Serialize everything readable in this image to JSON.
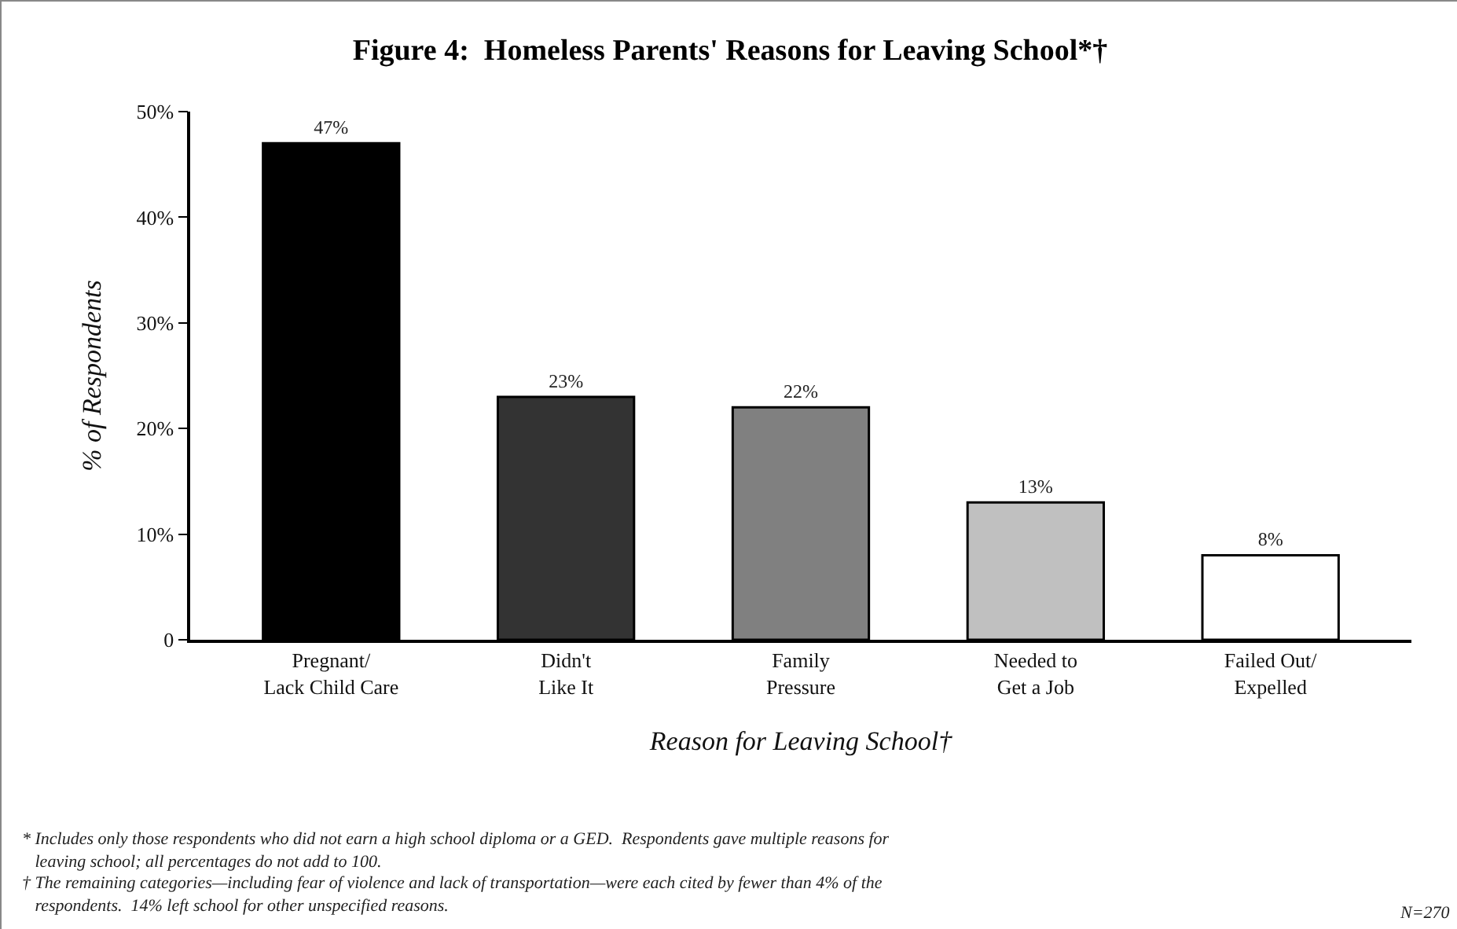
{
  "chart_data": {
    "type": "bar",
    "title": "Figure 4:  Homeless Parents' Reasons for Leaving School*†",
    "xlabel": "Reason for Leaving School†",
    "ylabel": "% of Respondents",
    "categories": [
      "Pregnant/\nLack Child Care",
      "Didn't\nLike It",
      "Family\nPressure",
      "Needed to\nGet a Job",
      "Failed Out/\nExpelled"
    ],
    "values": [
      47,
      23,
      22,
      13,
      8
    ],
    "colors": [
      "#000000",
      "#333333",
      "#808080",
      "#c0c0c0",
      "#ffffff"
    ],
    "value_labels": [
      "47%",
      "23%",
      "22%",
      "13%",
      "8%"
    ],
    "ylim": [
      0,
      50
    ],
    "yticks": [
      0,
      {
        "value": 10,
        "label": "10%"
      },
      {
        "value": 20,
        "label": "20%"
      },
      {
        "value": 30,
        "label": "30%"
      },
      {
        "value": 40,
        "label": "40%"
      },
      {
        "value": 50,
        "label": "50%"
      }
    ],
    "grid": false,
    "annotations": [
      "* Includes only those respondents who did not earn a high school diploma or a GED.  Respondents gave multiple reasons for\n   leaving school; all percentages do not add to 100.",
      "† The remaining categories—including fear of violence and lack of transportation—were each cited by fewer than 4% of the\n   respondents.  14% left school for other unspecified reasons.",
      "N=270"
    ]
  }
}
